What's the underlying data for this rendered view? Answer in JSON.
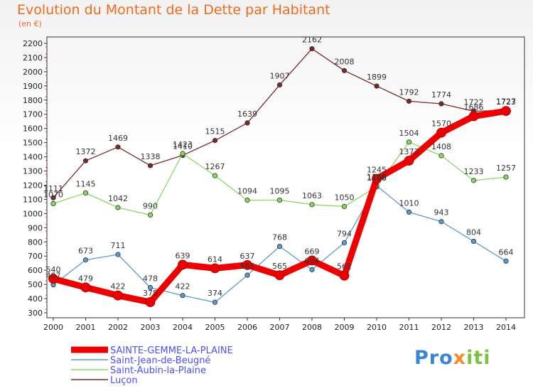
{
  "chart_data": {
    "type": "line",
    "title": "Evolution du Montant de la Dette par Habitant",
    "subtitle": "(en €)",
    "xlabel": "",
    "ylabel": "",
    "categories": [
      "2000",
      "2001",
      "2002",
      "2003",
      "2004",
      "2005",
      "2006",
      "2007",
      "2008",
      "2009",
      "2010",
      "2011",
      "2012",
      "2013",
      "2014"
    ],
    "ylim": [
      300,
      2200
    ],
    "yticks": [
      300,
      400,
      500,
      600,
      700,
      800,
      900,
      1000,
      1100,
      1200,
      1300,
      1400,
      1500,
      1600,
      1700,
      1800,
      1900,
      2000,
      2100,
      2200
    ],
    "grid": false,
    "legend_position": "bottom-left",
    "series": [
      {
        "name": "Luçon",
        "color": "#7a2a2a",
        "values": [
          1111,
          1372,
          1469,
          1338,
          1410,
          1515,
          1639,
          1907,
          2162,
          2008,
          1899,
          1792,
          1774,
          1722,
          1727
        ]
      },
      {
        "name": "Saint-Aubin-la-Plaine",
        "color": "#88d860",
        "values": [
          1070,
          1145,
          1042,
          990,
          1423,
          1267,
          1094,
          1095,
          1063,
          1050,
          1188,
          1504,
          1408,
          1233,
          1257
        ]
      },
      {
        "name": "Saint-Jean-de-Beugné",
        "color": "#5a9ad0",
        "values": [
          497,
          673,
          711,
          478,
          422,
          374,
          565,
          768,
          604,
          794,
          1196,
          1010,
          943,
          804,
          664
        ]
      },
      {
        "name": "SAINTE-GEMME-LA-PLAINE",
        "color": "#ee0000",
        "values": [
          540,
          479,
          422,
          375,
          639,
          614,
          637,
          565,
          669,
          562,
          1245,
          1373,
          1570,
          1686,
          1723
        ]
      }
    ]
  },
  "legend_order": [
    "SAINTE-GEMME-LA-PLAINE",
    "Saint-Jean-de-Beugné",
    "Saint-Aubin-la-Plaine",
    "Luçon"
  ],
  "colors": {
    "title": "#f06a1e",
    "axis": "#333333",
    "legend_text": "#4d4dff"
  },
  "logo": {
    "text1": "Pro",
    "text2": "x",
    "text3": "iti"
  }
}
